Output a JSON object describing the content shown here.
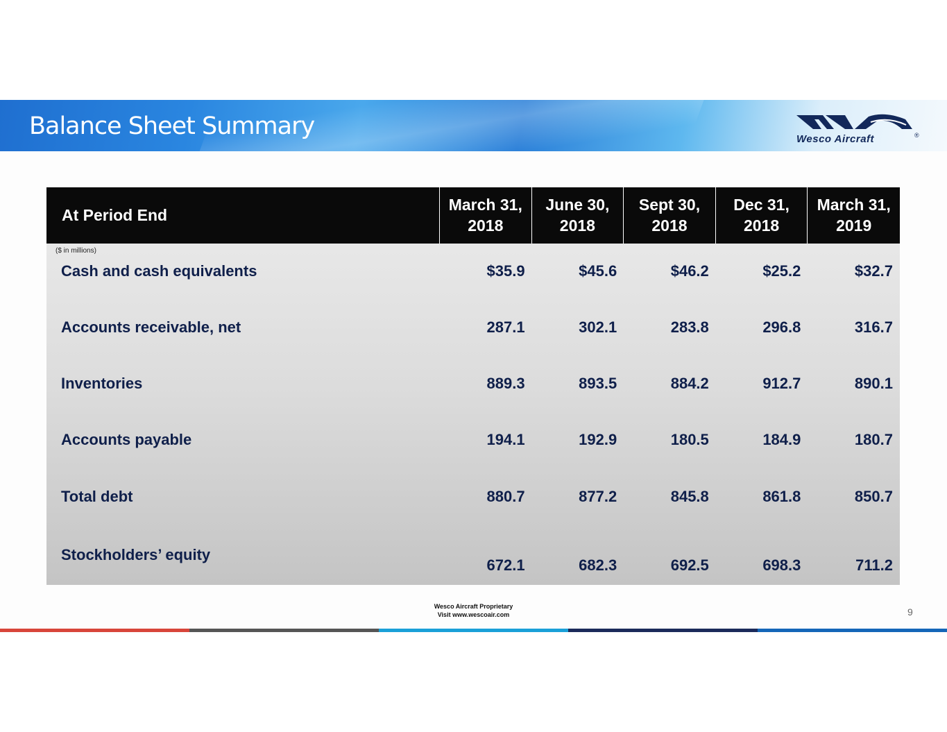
{
  "header": {
    "title": "Balance Sheet Summary",
    "logo_text": "Wesco Aircraft",
    "logo_mark": "®"
  },
  "table": {
    "corner_label": "At Period End",
    "units_note": "($ in millions)",
    "columns": [
      {
        "line1": "March 31,",
        "line2": "2018"
      },
      {
        "line1": "June 30,",
        "line2": "2018"
      },
      {
        "line1": "Sept 30,",
        "line2": "2018"
      },
      {
        "line1": "Dec 31,",
        "line2": "2018"
      },
      {
        "line1": "March 31,",
        "line2": "2019"
      }
    ],
    "rows": [
      {
        "label": "Cash and cash equivalents",
        "values": [
          "$35.9",
          "$45.6",
          "$46.2",
          "$25.2",
          "$32.7"
        ]
      },
      {
        "label": "Accounts receivable, net",
        "values": [
          "287.1",
          "302.1",
          "283.8",
          "296.8",
          "316.7"
        ]
      },
      {
        "label": "Inventories",
        "values": [
          "889.3",
          "893.5",
          "884.2",
          "912.7",
          "890.1"
        ]
      },
      {
        "label": "Accounts payable",
        "values": [
          "194.1",
          "192.9",
          "180.5",
          "184.9",
          "180.7"
        ]
      },
      {
        "label": "Total debt",
        "values": [
          "880.7",
          "877.2",
          "845.8",
          "861.8",
          "850.7"
        ]
      },
      {
        "label": "Stockholders’ equity",
        "values": [
          "672.1",
          "682.3",
          "692.5",
          "698.3",
          "711.2"
        ]
      }
    ]
  },
  "footer": {
    "line1": "Wesco Aircraft Proprietary",
    "line2": "Visit www.wescoair.com",
    "page_number": "9",
    "bar_colors": [
      "#d8453a",
      "#555555",
      "#1aa0d8",
      "#1b2a5a",
      "#1466b8"
    ]
  }
}
